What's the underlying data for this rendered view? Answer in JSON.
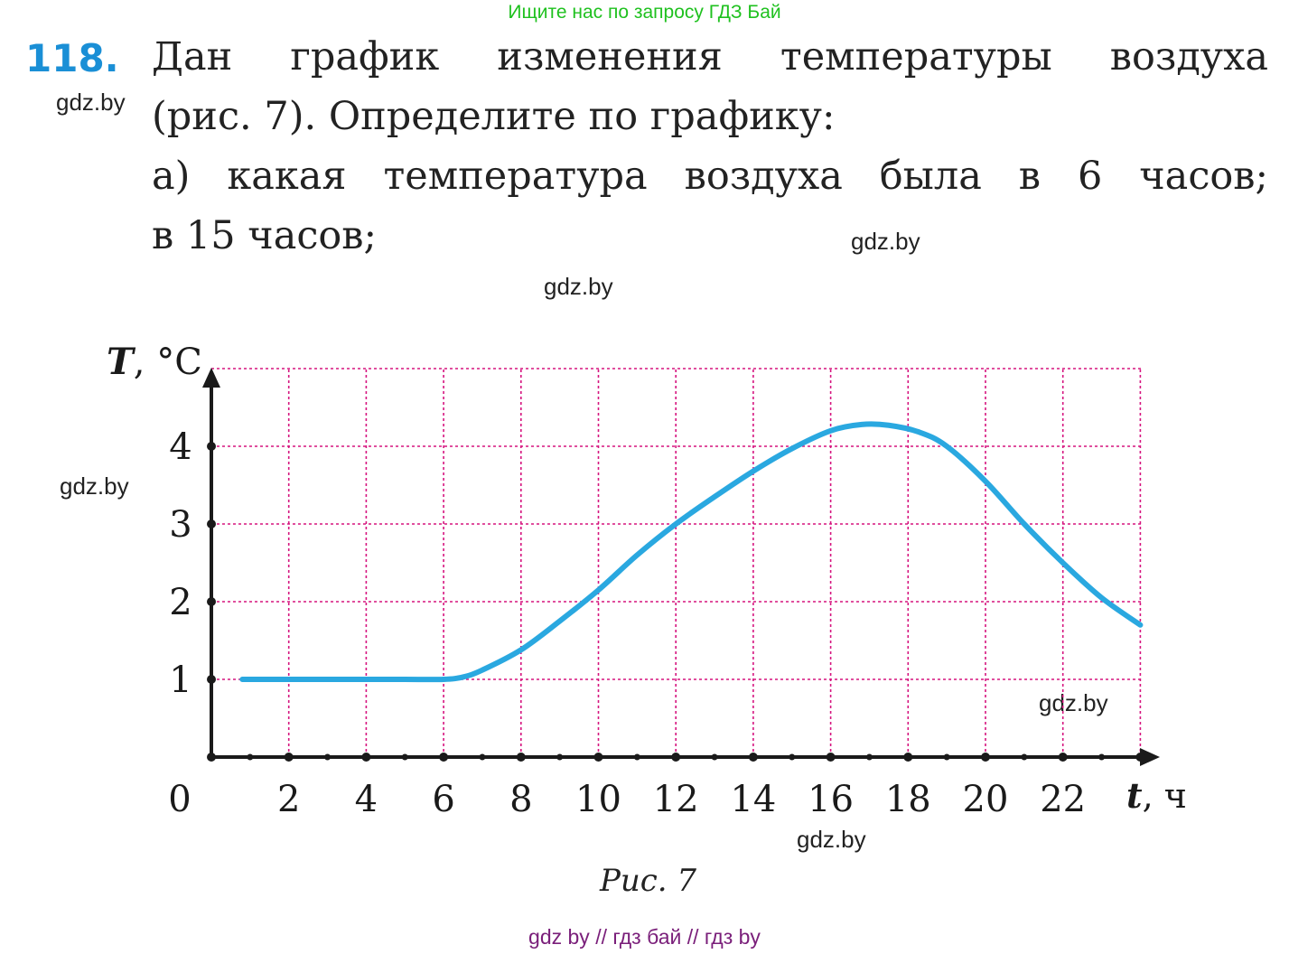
{
  "banner": "Ищите нас по запросу ГДЗ Бай",
  "task": {
    "number": "118.",
    "lines": [
      "Дан график изменения температуры воздуха",
      "(рис. 7). Определите по графику:",
      "а) какая температура воздуха была в 6 часов;",
      "в 15 часов;"
    ]
  },
  "watermarks": [
    "gdz.by",
    "gdz.by",
    "gdz.by",
    "gdz.by",
    "gdz.by",
    "gdz.by"
  ],
  "caption": "Рис. 7",
  "footer": "gdz by  //  гдз бай  //  гдз by",
  "chart_data": {
    "type": "line",
    "title": "",
    "xlabel_var": "t",
    "xlabel_unit": ", ч",
    "ylabel_var": "T",
    "ylabel_unit": ", °C",
    "origin_label": "0",
    "xlim": [
      0,
      24
    ],
    "ylim": [
      0,
      5
    ],
    "x_ticks": [
      "2",
      "4",
      "6",
      "8",
      "10",
      "12",
      "14",
      "16",
      "18",
      "20",
      "22"
    ],
    "y_ticks": [
      "1",
      "2",
      "3",
      "4"
    ],
    "grid": true,
    "grid_color": "#d6157f",
    "line_color": "#2aa8e0",
    "series": [
      {
        "x": [
          0.8,
          2,
          3,
          4,
          5,
          6,
          6.5,
          7,
          8,
          9,
          10,
          11,
          12,
          13,
          14,
          15,
          16,
          16.8,
          17.5,
          18.3,
          19,
          20,
          21,
          22,
          23,
          24
        ],
        "y": [
          1,
          1,
          1,
          1,
          1,
          1,
          1.03,
          1.12,
          1.38,
          1.75,
          2.15,
          2.6,
          3.0,
          3.35,
          3.68,
          3.97,
          4.2,
          4.28,
          4.27,
          4.18,
          4.0,
          3.55,
          3.0,
          2.5,
          2.05,
          1.7
        ]
      }
    ]
  }
}
